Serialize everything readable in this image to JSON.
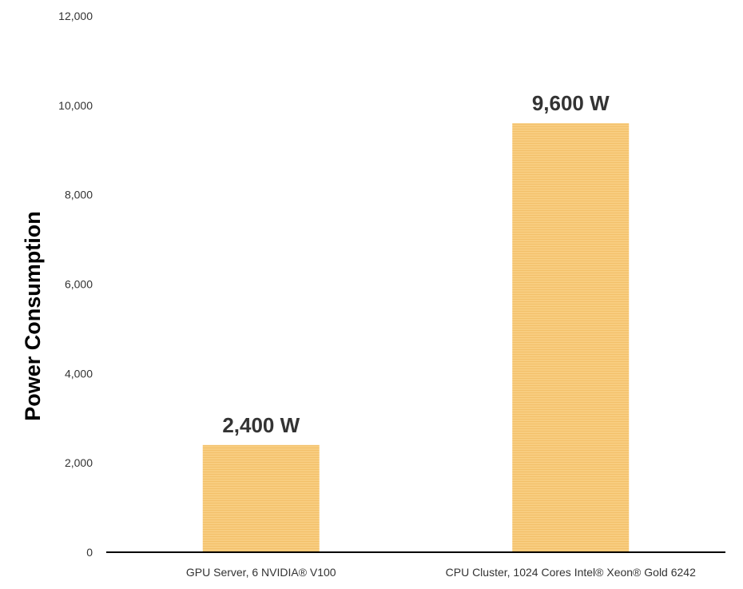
{
  "chart_data": {
    "type": "bar",
    "categories": [
      "GPU Server, 6 NVIDIA® V100",
      "CPU Cluster, 1024 Cores Intel® Xeon® Gold 6242"
    ],
    "values": [
      2400,
      9600
    ],
    "data_labels": [
      "2,400 W",
      "9,600 W"
    ],
    "title": "",
    "xlabel": "",
    "ylabel": "Power Consumption",
    "ylim": [
      0,
      12000
    ],
    "yticks": [
      0,
      2000,
      4000,
      6000,
      8000,
      10000,
      12000
    ],
    "ytick_labels": [
      "0",
      "2,000",
      "4,000",
      "6,000",
      "8,000",
      "10,000",
      "12,000"
    ],
    "grid": false,
    "legend": "none",
    "colors": {
      "bar": "#f8cd80",
      "bar_stripe": "#f3c06a",
      "axis": "#000000"
    }
  }
}
